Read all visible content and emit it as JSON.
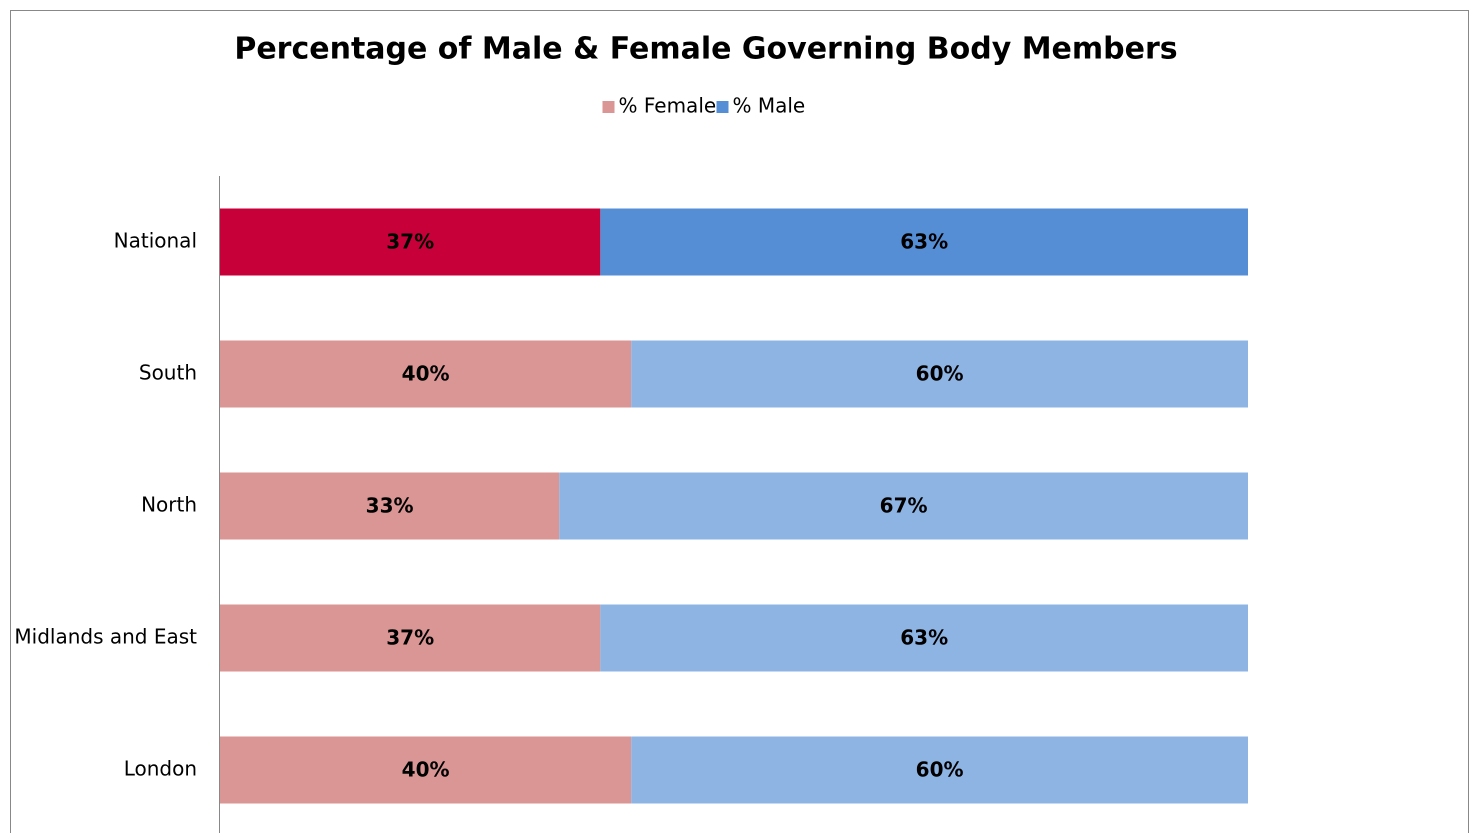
{
  "chart_data": {
    "type": "stacked-barh",
    "title": "Percentage of Male & Female Governing Body Members",
    "categories": [
      "National",
      "South",
      "North",
      "Midlands and East",
      "London"
    ],
    "series": [
      {
        "name": "% Female",
        "color": "#d99694",
        "colors": [
          "#c8003a",
          "#d99694",
          "#d99694",
          "#d99694",
          "#d99694"
        ],
        "values": [
          37,
          40,
          33,
          37,
          40
        ],
        "value_labels": [
          "37%",
          "40%",
          "33%",
          "37%",
          "40%"
        ]
      },
      {
        "name": "% Male",
        "color": "#558ed5",
        "colors": [
          "#558ed5",
          "#8eb4e3",
          "#8eb4e3",
          "#8eb4e3",
          "#8eb4e3"
        ],
        "values": [
          63,
          60,
          67,
          63,
          60
        ],
        "value_labels": [
          "63%",
          "60%",
          "67%",
          "63%",
          "60%"
        ]
      }
    ],
    "legend": "top"
  }
}
